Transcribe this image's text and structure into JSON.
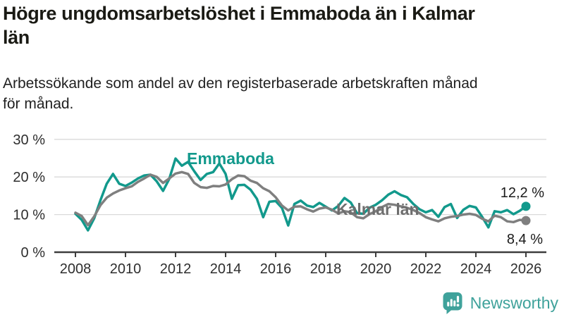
{
  "header": {
    "title": "Högre ungdomsarbetslöshet i Emmaboda än i Kalmar\nlän",
    "subtitle": "Arbetssökande som andel av den registerbaserade arbetskraften månad\nför månad."
  },
  "chart_data": {
    "type": "line",
    "x_start": 2008,
    "x_step": 0.25,
    "xlim": [
      2008,
      2026
    ],
    "ylim": [
      0,
      30
    ],
    "grid": "horizontal",
    "x_ticks": [
      "2008",
      "2010",
      "2012",
      "2014",
      "2016",
      "2018",
      "2020",
      "2022",
      "2024",
      "2026"
    ],
    "y_ticks": [
      {
        "value": 0,
        "label": "0 %"
      },
      {
        "value": 10,
        "label": "10 %"
      },
      {
        "value": 20,
        "label": "20 %"
      },
      {
        "value": 30,
        "label": "30 %"
      }
    ],
    "axis_color": "#3d3d3d",
    "gridline_color": "#d9d9d9",
    "series": [
      {
        "name": "Emmaboda",
        "color": "#12998c",
        "label_color": "#12998c",
        "end_label": "12,2 %",
        "end_value": 12.2,
        "values": [
          10.2,
          8.6,
          5.8,
          9.0,
          13.8,
          18.2,
          20.8,
          18.2,
          17.6,
          18.5,
          19.6,
          20.4,
          20.6,
          18.8,
          16.3,
          19.5,
          24.9,
          23.0,
          24.0,
          21.5,
          19.2,
          20.8,
          21.3,
          23.6,
          20.8,
          14.2,
          17.8,
          17.9,
          16.6,
          14.2,
          9.3,
          13.4,
          13.6,
          11.8,
          7.1,
          12.8,
          13.7,
          12.4,
          12.0,
          13.1,
          12.1,
          11.1,
          12.3,
          14.4,
          13.2,
          10.4,
          10.2,
          11.8,
          12.6,
          13.8,
          15.3,
          16.2,
          15.2,
          14.6,
          12.8,
          11.4,
          10.6,
          11.2,
          9.4,
          12.0,
          12.8,
          9.1,
          11.3,
          12.3,
          11.9,
          9.4,
          6.6,
          10.9,
          10.6,
          11.2,
          10.1,
          11.0,
          12.2
        ]
      },
      {
        "name": "Kalmar län",
        "color": "#7f7f7f",
        "label_color": "#6e6e6e",
        "end_label": "8,4 %",
        "end_value": 8.4,
        "values": [
          10.5,
          9.6,
          7.2,
          9.5,
          12.5,
          14.5,
          15.6,
          16.4,
          17.0,
          17.5,
          18.7,
          19.6,
          20.6,
          20.0,
          18.4,
          19.6,
          20.9,
          21.3,
          20.8,
          18.4,
          17.3,
          17.1,
          17.6,
          17.5,
          18.0,
          19.4,
          20.4,
          20.2,
          19.0,
          18.4,
          17.0,
          16.2,
          14.6,
          12.4,
          11.1,
          12.1,
          12.2,
          11.4,
          10.8,
          11.6,
          11.9,
          11.3,
          10.3,
          10.9,
          10.6,
          9.3,
          9.0,
          10.1,
          10.9,
          12.0,
          12.8,
          12.6,
          12.2,
          11.8,
          11.2,
          10.4,
          9.3,
          8.7,
          8.2,
          9.0,
          9.4,
          9.6,
          10.0,
          10.2,
          9.9,
          8.9,
          8.2,
          9.7,
          9.3,
          8.2,
          8.0,
          8.6,
          8.4
        ]
      }
    ]
  },
  "footer": {
    "brand": "Newsworthy",
    "brand_color": "#3fa29b",
    "logo_icon": "bar-chart-speech-bubble-icon"
  }
}
